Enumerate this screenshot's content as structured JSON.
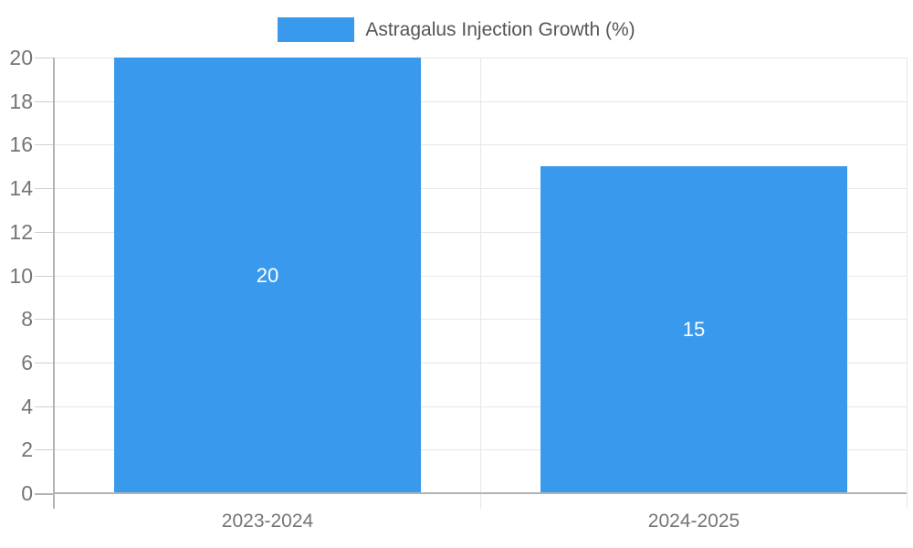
{
  "legend": {
    "label": "Astragalus Injection Growth (%)"
  },
  "colors": {
    "bar": "#3999ED",
    "grid": "#E7E7E7",
    "tick_stub": "#CFCFCF",
    "axis": "#B3B3B3",
    "tick_text": "#757575",
    "legend_text": "#555555",
    "bar_label_text": "#FFFFFF",
    "background": "#FFFFFF"
  },
  "chart_data": {
    "type": "bar",
    "title": "Astragalus Injection Growth (%)",
    "categories": [
      "2023-2024",
      "2024-2025"
    ],
    "values": [
      20,
      15
    ],
    "bar_labels": [
      "20",
      "15"
    ],
    "xlabel": "",
    "ylabel": "",
    "ylim": [
      0,
      20
    ],
    "yticks": [
      0,
      2,
      4,
      6,
      8,
      10,
      12,
      14,
      16,
      18,
      20
    ],
    "grid": true,
    "legend_position": "top",
    "series_name": "Astragalus Injection Growth (%)"
  }
}
